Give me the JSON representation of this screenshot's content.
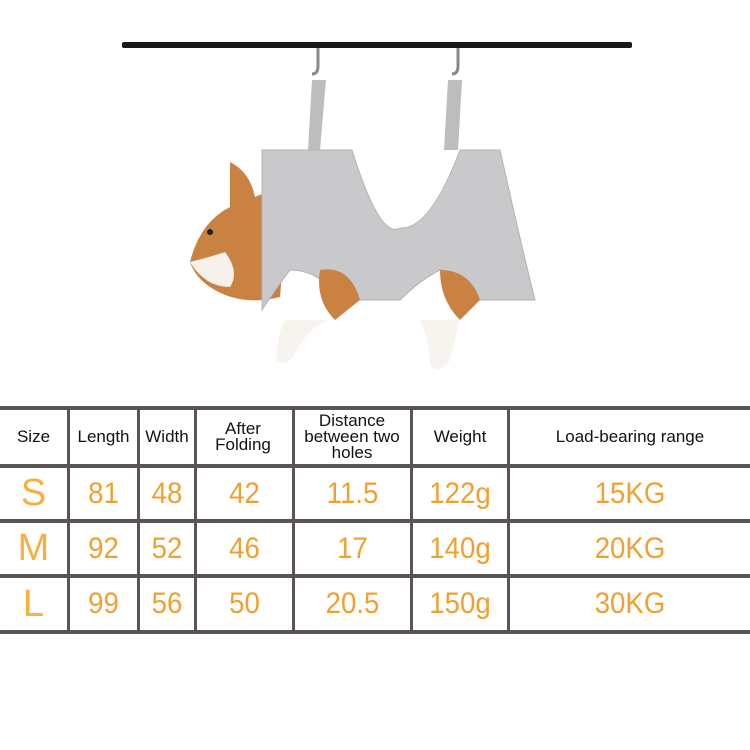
{
  "colors": {
    "value_orange": "#f0a030",
    "size_orange": "#f5b040",
    "grid_line": "#5a5454",
    "hammock_grey": "#c9c9cb"
  },
  "illustration": {
    "subject": "dog-in-grooming-hammock-icon"
  },
  "table": {
    "headers": [
      "Size",
      "Length",
      "Width",
      "After Folding",
      "Distance between two holes",
      "Weight",
      "Load-bearing range"
    ],
    "rows": [
      [
        "S",
        "81",
        "48",
        "42",
        "11.5",
        "122g",
        "15KG"
      ],
      [
        "M",
        "92",
        "52",
        "46",
        "17",
        "140g",
        "20KG"
      ],
      [
        "L",
        "99",
        "56",
        "50",
        "20.5",
        "150g",
        "30KG"
      ]
    ]
  }
}
